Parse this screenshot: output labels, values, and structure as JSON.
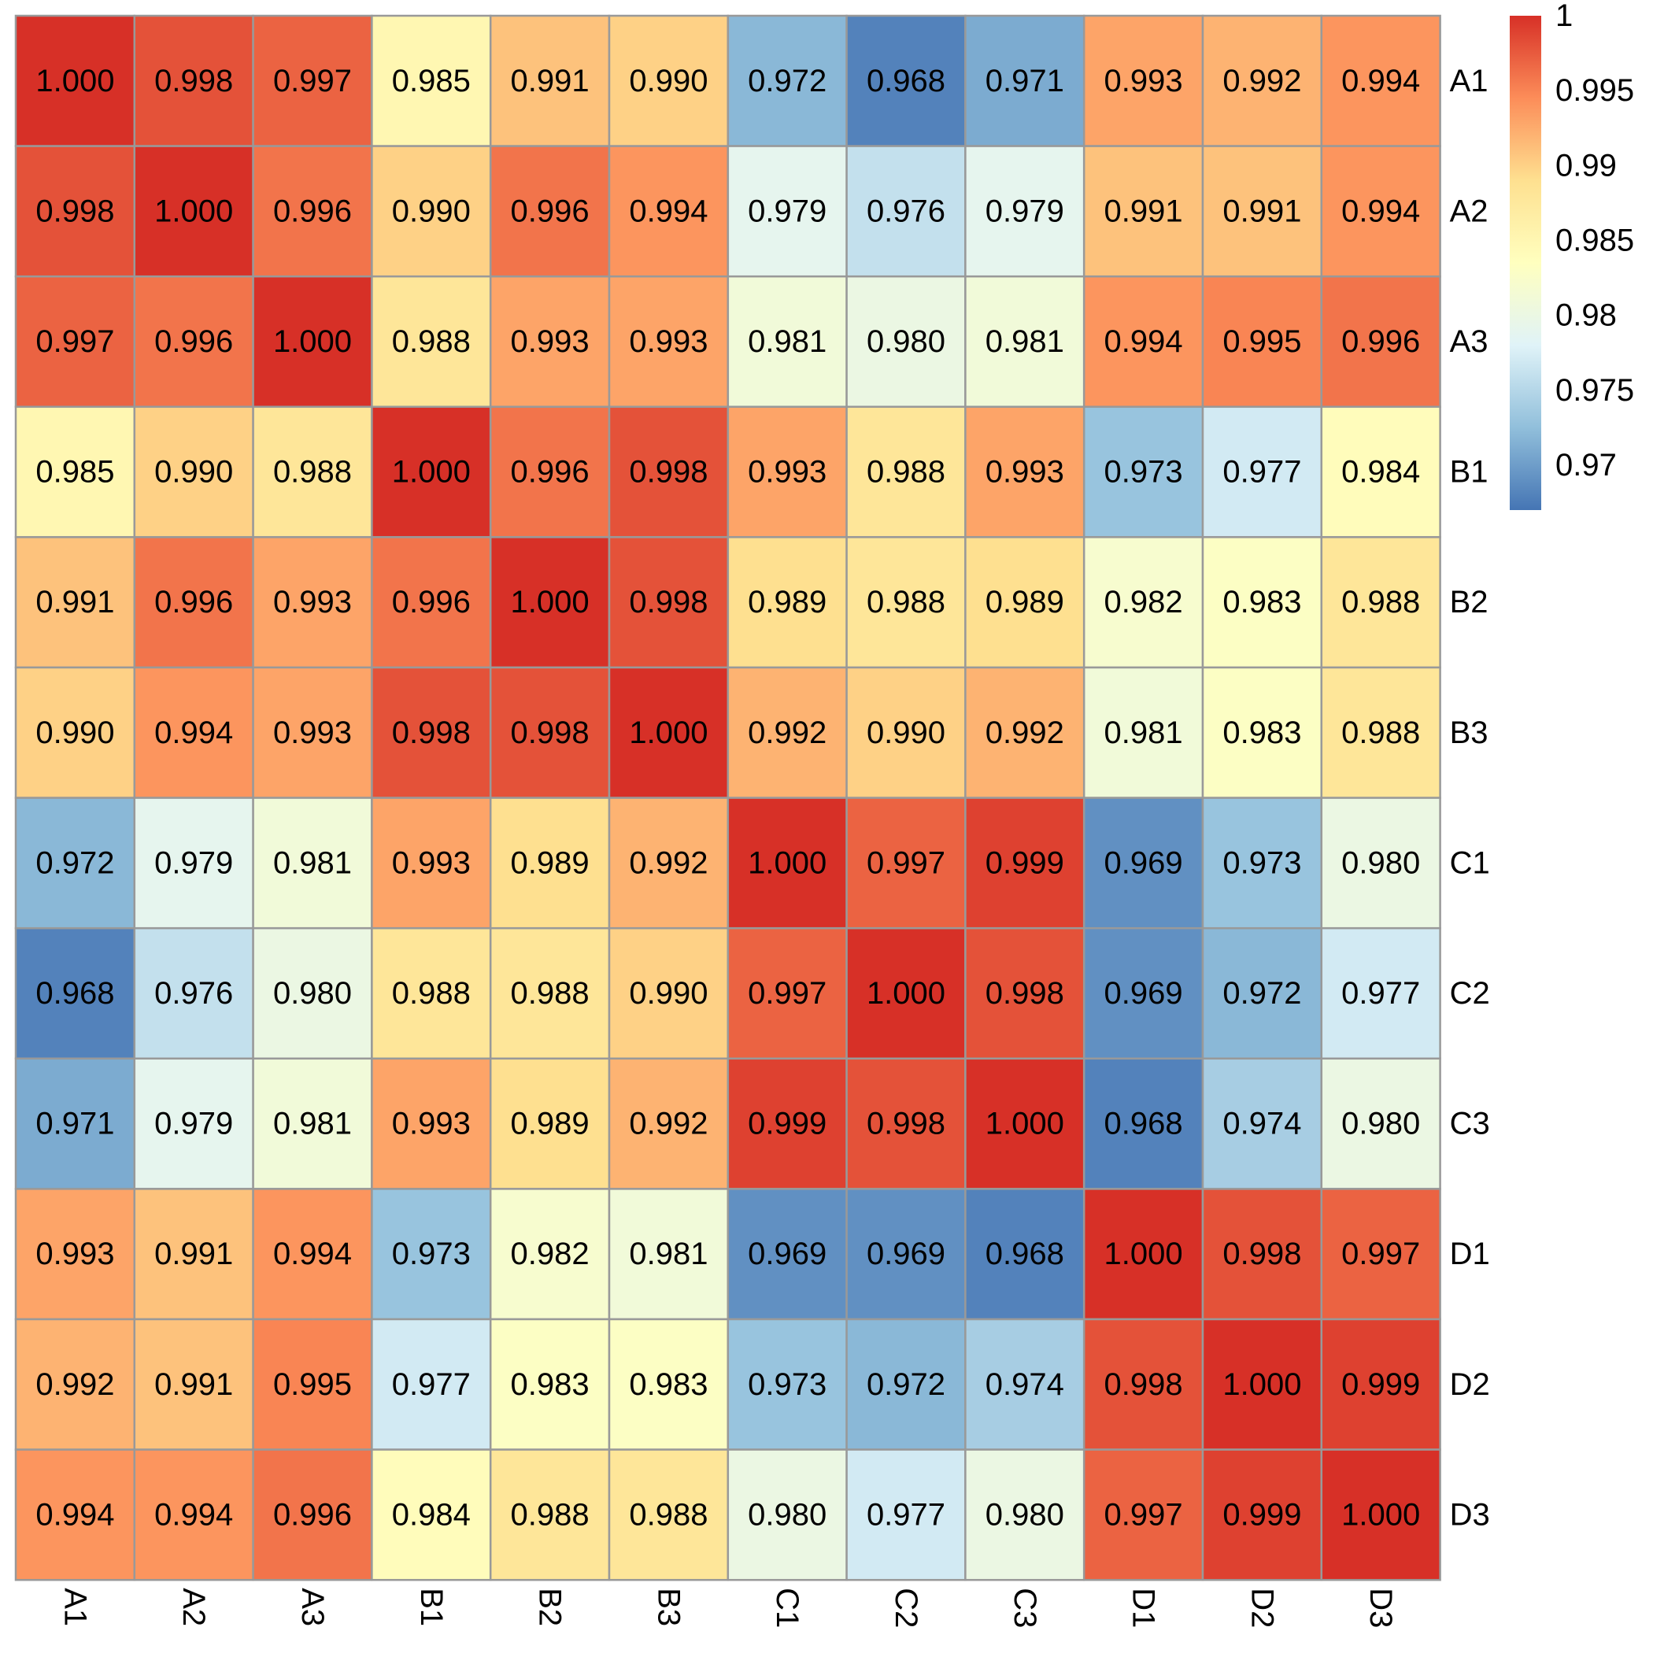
{
  "chart_data": {
    "type": "heatmap",
    "row_labels": [
      "A1",
      "A2",
      "A3",
      "B1",
      "B2",
      "B3",
      "C1",
      "C2",
      "C3",
      "D1",
      "D2",
      "D3"
    ],
    "col_labels": [
      "A1",
      "A2",
      "A3",
      "B1",
      "B2",
      "B3",
      "C1",
      "C2",
      "C3",
      "D1",
      "D2",
      "D3"
    ],
    "values": [
      [
        "1.000",
        "0.998",
        "0.997",
        "0.985",
        "0.991",
        "0.990",
        "0.972",
        "0.968",
        "0.971",
        "0.993",
        "0.992",
        "0.994"
      ],
      [
        "0.998",
        "1.000",
        "0.996",
        "0.990",
        "0.996",
        "0.994",
        "0.979",
        "0.976",
        "0.979",
        "0.991",
        "0.991",
        "0.994"
      ],
      [
        "0.997",
        "0.996",
        "1.000",
        "0.988",
        "0.993",
        "0.993",
        "0.981",
        "0.980",
        "0.981",
        "0.994",
        "0.995",
        "0.996"
      ],
      [
        "0.985",
        "0.990",
        "0.988",
        "1.000",
        "0.996",
        "0.998",
        "0.993",
        "0.988",
        "0.993",
        "0.973",
        "0.977",
        "0.984"
      ],
      [
        "0.991",
        "0.996",
        "0.993",
        "0.996",
        "1.000",
        "0.998",
        "0.989",
        "0.988",
        "0.989",
        "0.982",
        "0.983",
        "0.988"
      ],
      [
        "0.990",
        "0.994",
        "0.993",
        "0.998",
        "0.998",
        "1.000",
        "0.992",
        "0.990",
        "0.992",
        "0.981",
        "0.983",
        "0.988"
      ],
      [
        "0.972",
        "0.979",
        "0.981",
        "0.993",
        "0.989",
        "0.992",
        "1.000",
        "0.997",
        "0.999",
        "0.969",
        "0.973",
        "0.980"
      ],
      [
        "0.968",
        "0.976",
        "0.980",
        "0.988",
        "0.988",
        "0.990",
        "0.997",
        "1.000",
        "0.998",
        "0.969",
        "0.972",
        "0.977"
      ],
      [
        "0.971",
        "0.979",
        "0.981",
        "0.993",
        "0.989",
        "0.992",
        "0.999",
        "0.998",
        "1.000",
        "0.968",
        "0.974",
        "0.980"
      ],
      [
        "0.993",
        "0.991",
        "0.994",
        "0.973",
        "0.982",
        "0.981",
        "0.969",
        "0.969",
        "0.968",
        "1.000",
        "0.998",
        "0.997"
      ],
      [
        "0.992",
        "0.991",
        "0.995",
        "0.977",
        "0.983",
        "0.983",
        "0.973",
        "0.972",
        "0.974",
        "0.998",
        "1.000",
        "0.999"
      ],
      [
        "0.994",
        "0.994",
        "0.996",
        "0.984",
        "0.988",
        "0.988",
        "0.980",
        "0.977",
        "0.980",
        "0.997",
        "0.999",
        "1.000"
      ]
    ],
    "color_scale": {
      "min": 0.967,
      "max": 1.0,
      "colors": [
        "#4575b4",
        "#91bfdb",
        "#e0f3f8",
        "#ffffbf",
        "#fee090",
        "#fc8d59",
        "#d73027"
      ]
    },
    "legend": {
      "position": "top-right",
      "ticks": [
        "1",
        "0.995",
        "0.99",
        "0.985",
        "0.98",
        "0.975",
        "0.97"
      ]
    },
    "cell_border_color": "#999999"
  }
}
